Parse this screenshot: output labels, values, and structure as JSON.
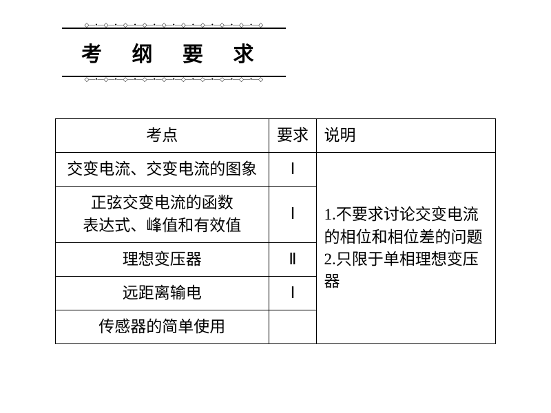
{
  "title": "考 纲 要 求",
  "decor_pattern_h": "◇—•—◇—•—◇—•—◇—•—◇—•—◇—•—◇—•—◇—•—◇—•—◇",
  "decor_pattern_v": "◇\n•\n◇\n•",
  "table": {
    "headers": {
      "topic": "考点",
      "req": "要求",
      "note": "说明"
    },
    "rows": [
      {
        "topic": "交变电流、交变电流的图象",
        "req": "Ⅰ"
      },
      {
        "topic": "正弦交变电流的函数\n表达式、峰值和有效值",
        "req": "Ⅰ"
      },
      {
        "topic": "理想变压器",
        "req": "Ⅱ"
      },
      {
        "topic": "远距离输电",
        "req": "Ⅰ"
      },
      {
        "topic": "传感器的简单使用",
        "req": ""
      }
    ],
    "note": "1.不要求讨论交变电流的相位和相位差的问题\n2.只限于单相理想变压器"
  },
  "colors": {
    "text": "#000000",
    "background": "#ffffff",
    "border": "#000000"
  }
}
